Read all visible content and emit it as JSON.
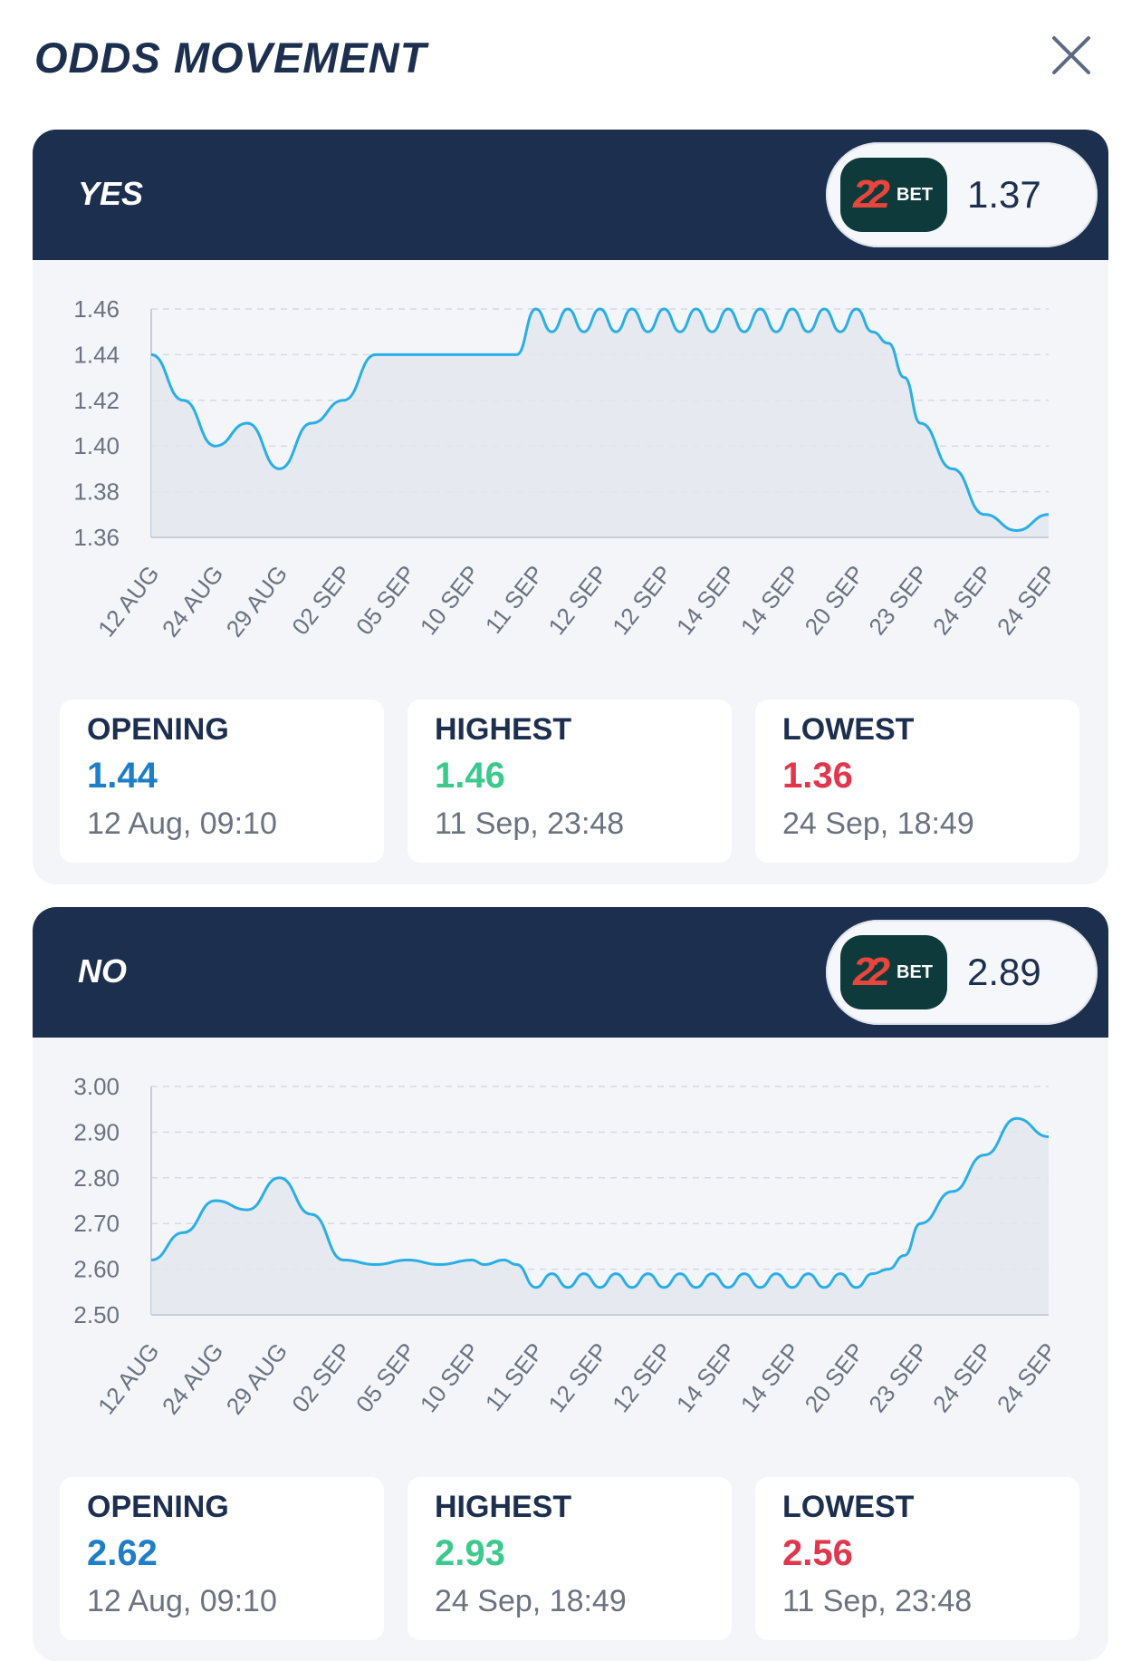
{
  "header": {
    "title": "ODDS MOVEMENT",
    "close_icon": "close-icon"
  },
  "colors": {
    "navy": "#1d2f4f",
    "line": "#2aaee6",
    "opening": "#1f7fc6",
    "highest": "#3cc98e",
    "lowest": "#e0374f",
    "bookmaker_bg": "#0f3a3b"
  },
  "markets": [
    {
      "label": "YES",
      "bookmaker": {
        "logo_number": "22",
        "logo_text": "BET"
      },
      "current_odds": "1.37",
      "stats": {
        "opening": {
          "label": "OPENING",
          "value": "1.44",
          "date": "12 Aug, 09:10"
        },
        "highest": {
          "label": "HIGHEST",
          "value": "1.46",
          "date": "11 Sep, 23:48"
        },
        "lowest": {
          "label": "LOWEST",
          "value": "1.36",
          "date": "24 Sep, 18:49"
        }
      }
    },
    {
      "label": "NO",
      "bookmaker": {
        "logo_number": "22",
        "logo_text": "BET"
      },
      "current_odds": "2.89",
      "stats": {
        "opening": {
          "label": "OPENING",
          "value": "2.62",
          "date": "12 Aug, 09:10"
        },
        "highest": {
          "label": "HIGHEST",
          "value": "2.93",
          "date": "24 Sep, 18:49"
        },
        "lowest": {
          "label": "LOWEST",
          "value": "2.56",
          "date": "11 Sep, 23:48"
        }
      }
    }
  ],
  "chart_data": [
    {
      "type": "area",
      "grid": true,
      "yticks": [
        "1.46",
        "1.44",
        "1.42",
        "1.40",
        "1.38",
        "1.36"
      ],
      "ylim": [
        1.36,
        1.46
      ],
      "xticks": [
        "12 AUG",
        "24 AUG",
        "29 AUG",
        "02 SEP",
        "05 SEP",
        "10 SEP",
        "11 SEP",
        "12 SEP",
        "12 SEP",
        "14 SEP",
        "14 SEP",
        "20 SEP",
        "23 SEP",
        "24 SEP",
        "24 SEP"
      ],
      "x_index": [
        0,
        0.5,
        1,
        1.5,
        2,
        2.5,
        3,
        3.5,
        4,
        4.5,
        5,
        5.2,
        5.5,
        5.7,
        6,
        6.25,
        6.5,
        6.75,
        7,
        7.25,
        7.5,
        7.75,
        8,
        8.25,
        8.5,
        8.75,
        9,
        9.25,
        9.5,
        9.75,
        10,
        10.25,
        10.5,
        10.75,
        11,
        11.25,
        11.5,
        11.75,
        12,
        12.5,
        13,
        13.5,
        14
      ],
      "values": [
        1.44,
        1.42,
        1.4,
        1.41,
        1.39,
        1.41,
        1.42,
        1.44,
        1.44,
        1.44,
        1.44,
        1.44,
        1.44,
        1.44,
        1.46,
        1.45,
        1.46,
        1.45,
        1.46,
        1.45,
        1.46,
        1.45,
        1.46,
        1.45,
        1.46,
        1.45,
        1.46,
        1.45,
        1.46,
        1.45,
        1.46,
        1.45,
        1.46,
        1.45,
        1.46,
        1.45,
        1.445,
        1.43,
        1.41,
        1.39,
        1.37,
        1.363,
        1.37
      ]
    },
    {
      "type": "area",
      "grid": true,
      "yticks": [
        "3.00",
        "2.90",
        "2.80",
        "2.70",
        "2.60",
        "2.50"
      ],
      "ylim": [
        2.5,
        3.0
      ],
      "xticks": [
        "12 AUG",
        "24 AUG",
        "29 AUG",
        "02 SEP",
        "05 SEP",
        "10 SEP",
        "11 SEP",
        "12 SEP",
        "12 SEP",
        "14 SEP",
        "14 SEP",
        "20 SEP",
        "23 SEP",
        "24 SEP",
        "24 SEP"
      ],
      "x_index": [
        0,
        0.5,
        1,
        1.5,
        2,
        2.5,
        3,
        3.5,
        4,
        4.5,
        5,
        5.2,
        5.5,
        5.7,
        6,
        6.25,
        6.5,
        6.75,
        7,
        7.25,
        7.5,
        7.75,
        8,
        8.25,
        8.5,
        8.75,
        9,
        9.25,
        9.5,
        9.75,
        10,
        10.25,
        10.5,
        10.75,
        11,
        11.25,
        11.5,
        11.75,
        12,
        12.5,
        13,
        13.5,
        14
      ],
      "values": [
        2.62,
        2.68,
        2.75,
        2.73,
        2.8,
        2.72,
        2.62,
        2.61,
        2.62,
        2.61,
        2.62,
        2.61,
        2.62,
        2.61,
        2.56,
        2.59,
        2.56,
        2.59,
        2.56,
        2.59,
        2.56,
        2.59,
        2.56,
        2.59,
        2.56,
        2.59,
        2.56,
        2.59,
        2.56,
        2.59,
        2.56,
        2.59,
        2.56,
        2.59,
        2.56,
        2.59,
        2.6,
        2.63,
        2.7,
        2.77,
        2.85,
        2.93,
        2.89
      ]
    }
  ]
}
